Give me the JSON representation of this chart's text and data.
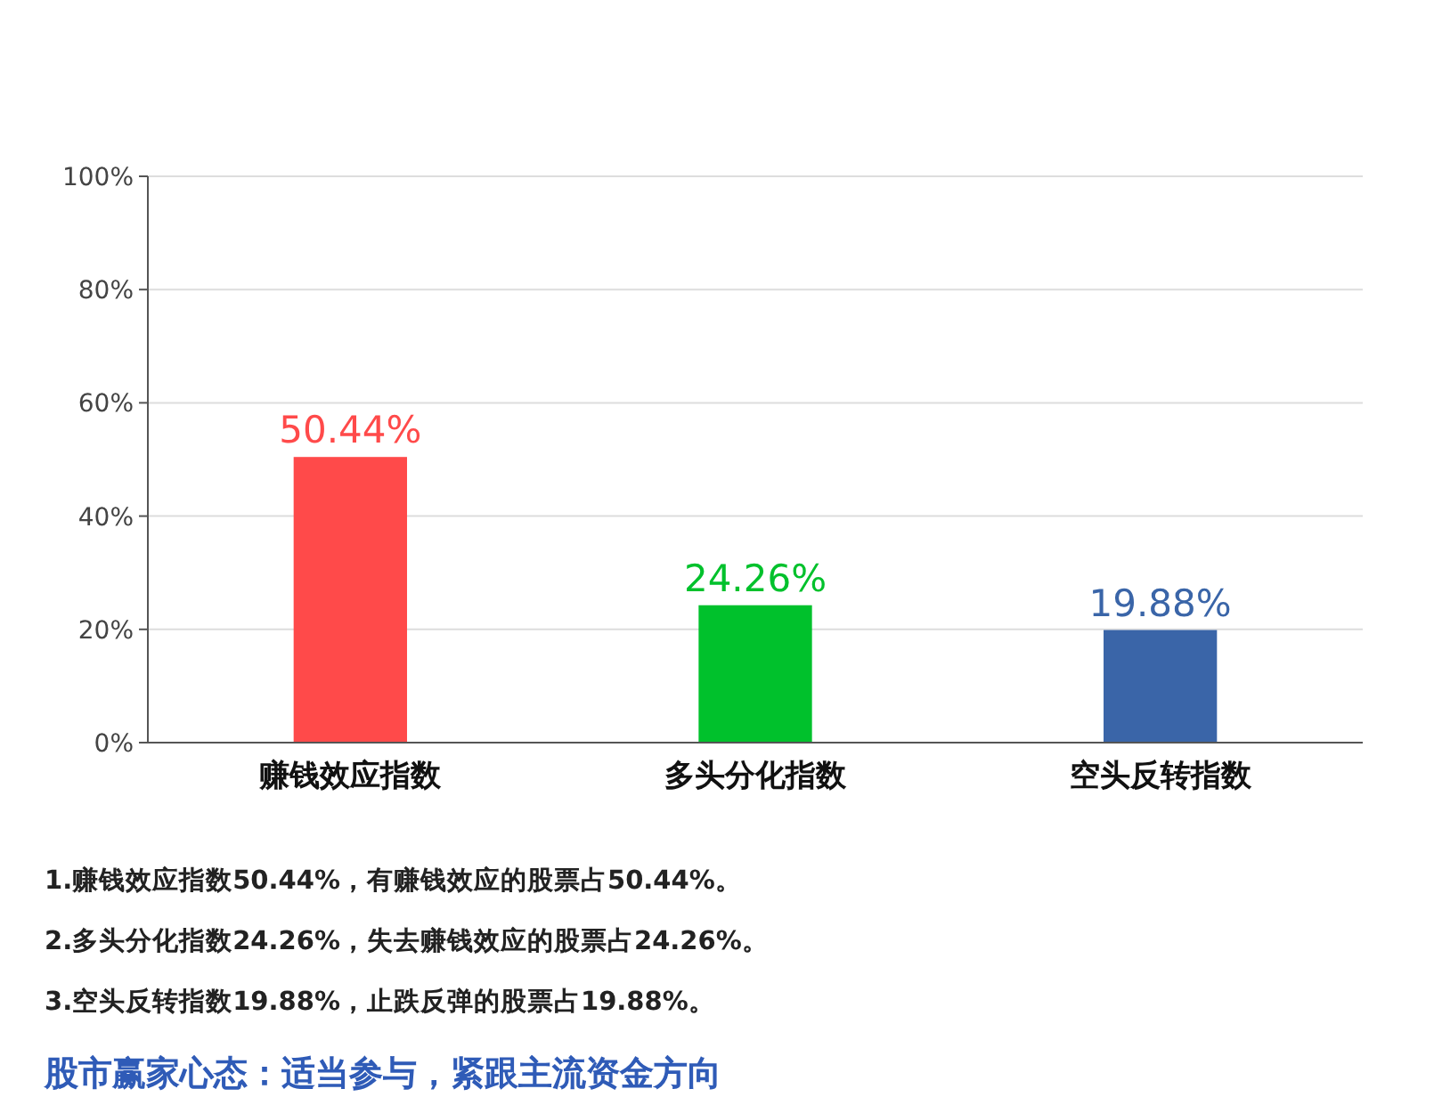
{
  "chart_data": {
    "type": "bar",
    "categories": [
      "赚钱效应指数",
      "多头分化指数",
      "空头反转指数"
    ],
    "values": [
      50.44,
      24.26,
      19.88
    ],
    "colors": [
      "#ff4a4a",
      "#00c12c",
      "#3a65a8"
    ],
    "value_labels": [
      "50.44%",
      "24.26%",
      "19.88%"
    ],
    "ylim": [
      0,
      100
    ],
    "yticks": [
      {
        "value": 0,
        "label": "0%"
      },
      {
        "value": 20,
        "label": "20%"
      },
      {
        "value": 40,
        "label": "40%"
      },
      {
        "value": 60,
        "label": "60%"
      },
      {
        "value": 80,
        "label": "80%"
      },
      {
        "value": 100,
        "label": "100%"
      }
    ],
    "grid": "y",
    "annotations": [
      "1.赚钱效应指数50.44%，有赚钱效应的股票占50.44%。",
      "2.多头分化指数24.26%，失去赚钱效应的股票占24.26%。",
      "3.空头反转指数19.88%，止跌反弹的股票占19.88%。",
      "股市赢家心态：适当参与，紧跟主流资金方向"
    ]
  }
}
